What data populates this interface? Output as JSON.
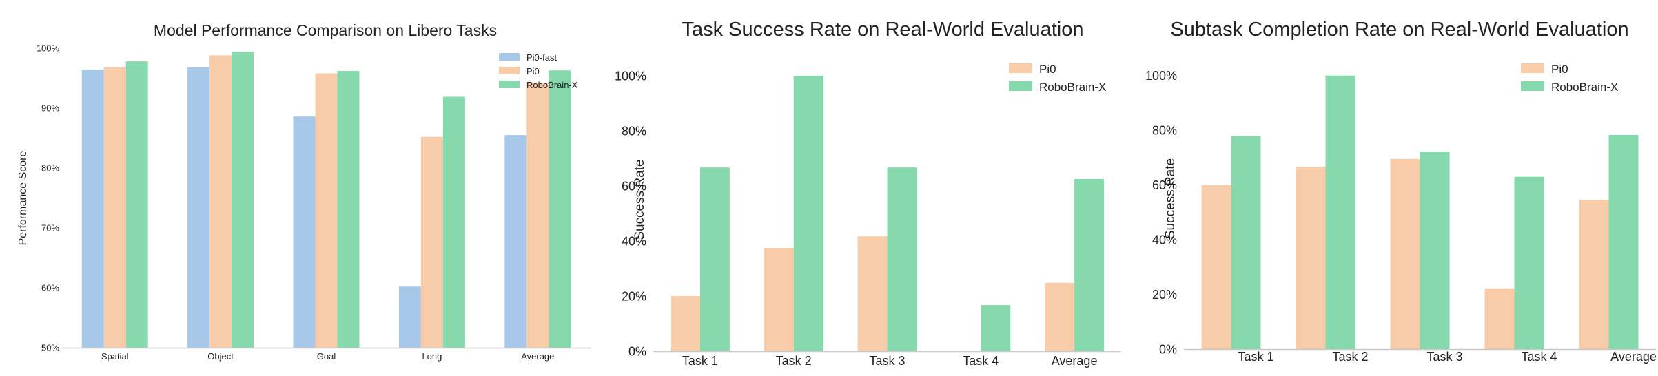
{
  "colors": {
    "Pi0-fast": "#a8c8ea",
    "Pi0": "#f8cca8",
    "RoboBrain-X": "#86d9ac",
    "axis": "#c8c8c8",
    "text": "#222222"
  },
  "chart_data": [
    {
      "type": "bar",
      "title": "Model Performance Comparison on Libero Tasks",
      "xlabel": "",
      "ylabel": "Performance Score",
      "ylim": [
        50,
        100
      ],
      "yticks": [
        "50%",
        "60%",
        "70%",
        "80%",
        "90%",
        "100%"
      ],
      "grid": false,
      "legend_position": "top-right",
      "categories": [
        "Spatial",
        "Object",
        "Goal",
        "Long",
        "Average"
      ],
      "series": [
        {
          "name": "Pi0-fast",
          "values": [
            96.4,
            96.8,
            88.6,
            60.2,
            85.5
          ]
        },
        {
          "name": "Pi0",
          "values": [
            96.8,
            98.8,
            95.8,
            85.2,
            94.2
          ]
        },
        {
          "name": "RoboBrain-X",
          "values": [
            97.8,
            99.4,
            96.2,
            91.9,
            96.3
          ]
        }
      ]
    },
    {
      "type": "bar",
      "title": "Task Success Rate on Real-World Evaluation",
      "xlabel": "",
      "ylabel": "Success Rate",
      "ylim": [
        0,
        110
      ],
      "yticks": [
        "0%",
        "20%",
        "40%",
        "60%",
        "80%",
        "100%"
      ],
      "grid": false,
      "legend_position": "top-right",
      "categories": [
        "Task 1",
        "Task 2",
        "Task 3",
        "Task 4",
        "Average"
      ],
      "series": [
        {
          "name": "Pi0",
          "values": [
            20,
            37.5,
            41.7,
            0,
            24.8
          ]
        },
        {
          "name": "RoboBrain-X",
          "values": [
            66.7,
            100,
            66.7,
            16.7,
            62.5
          ]
        }
      ]
    },
    {
      "type": "bar",
      "title": "Subtask Completion Rate on Real-World Evaluation",
      "xlabel": "",
      "ylabel": "Success Rate",
      "ylim": [
        0,
        110
      ],
      "yticks": [
        "0%",
        "20%",
        "40%",
        "60%",
        "80%",
        "100%"
      ],
      "grid": false,
      "legend_position": "top-right",
      "categories": [
        "Task 1",
        "Task 2",
        "Task 3",
        "Task 4",
        "Average"
      ],
      "series": [
        {
          "name": "Pi0",
          "values": [
            60,
            66.7,
            69.5,
            22.2,
            54.6
          ]
        },
        {
          "name": "RoboBrain-X",
          "values": [
            77.8,
            100,
            72.2,
            63.0,
            78.3
          ]
        }
      ]
    }
  ]
}
